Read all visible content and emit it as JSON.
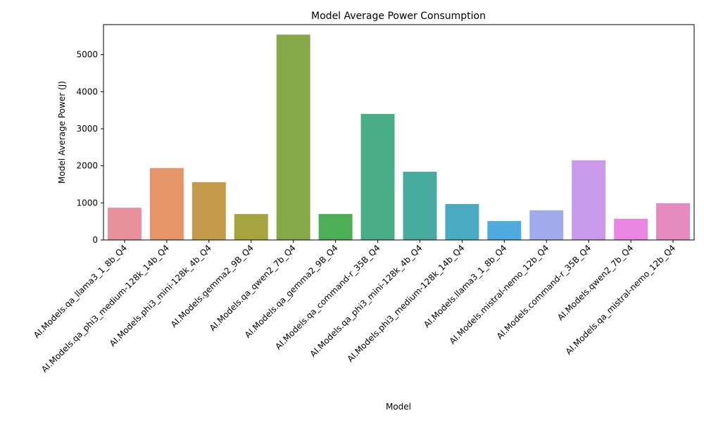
{
  "chart_data": {
    "type": "bar",
    "title": "Model Average Power Consumption",
    "xlabel": "Model",
    "ylabel": "Model Average Power (J)",
    "ylim": [
      0,
      5810
    ],
    "yticks": [
      0,
      1000,
      2000,
      3000,
      4000,
      5000
    ],
    "grid": false,
    "legend": "none",
    "categories": [
      "AI.Models.qa_llama3_1_8b_Q4",
      "AI.Models.qa_phi3_medium-128k_14b_Q4",
      "AI.Models.phi3_mini-128k_4b_Q4",
      "AI.Models.gemma2_9B_Q4",
      "AI.Models.qa_qwen2_7b_Q4",
      "AI.Models.qa_gemma2_9B_Q4",
      "AI.Models.qa_command-r_35B_Q4",
      "AI.Models.qa_phi3_mini-128k_4b_Q4",
      "AI.Models.phi3_medium-128k_14b_Q4",
      "AI.Models.llama3_1_8b_Q4",
      "AI.Models.mistral-nemo_12b_Q4",
      "AI.Models.command-r_35B_Q4",
      "AI.Models.qwen2_7b_Q4",
      "AI.Models.qa_mistral-nemo_12b_Q4"
    ],
    "values": [
      870,
      1940,
      1560,
      700,
      5540,
      700,
      3400,
      1840,
      970,
      510,
      800,
      2150,
      570,
      990
    ],
    "colors": [
      "#e8919c",
      "#e6946a",
      "#c39b4b",
      "#a5a43f",
      "#85a946",
      "#4cae56",
      "#4aad8a",
      "#48ab9e",
      "#4aabc0",
      "#50aadc",
      "#a1abeb",
      "#c99aea",
      "#ea85e3",
      "#e68bc1"
    ]
  }
}
